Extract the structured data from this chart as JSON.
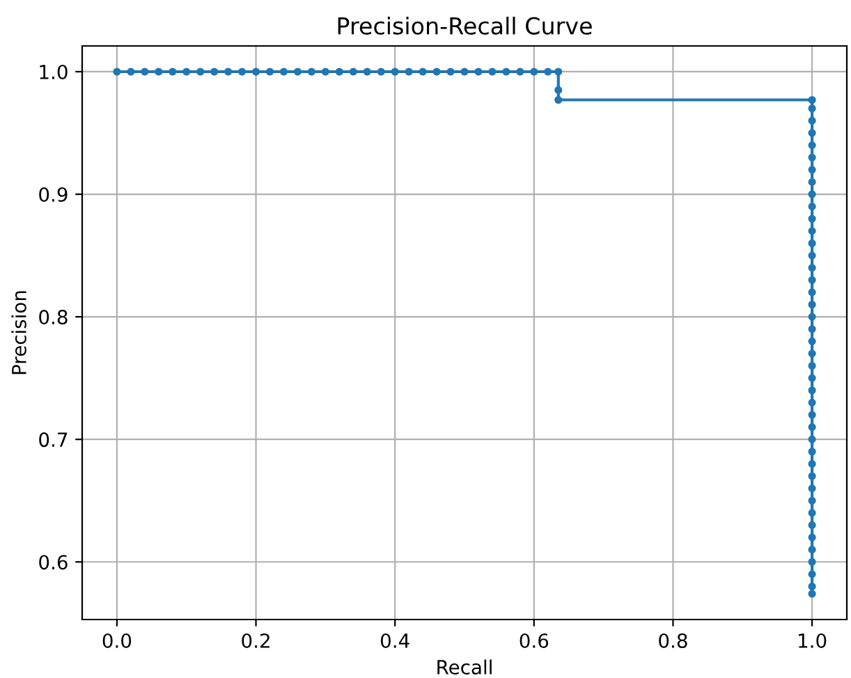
{
  "chart_data": {
    "type": "line",
    "title": "Precision-Recall Curve",
    "xlabel": "Recall",
    "ylabel": "Precision",
    "series": [
      {
        "color": "#1f77b4",
        "x": [
          0,
          0.02,
          0.04,
          0.06,
          0.08,
          0.1,
          0.12,
          0.14,
          0.16,
          0.18,
          0.2,
          0.22,
          0.24,
          0.26,
          0.28,
          0.3,
          0.32,
          0.34,
          0.36,
          0.38,
          0.4,
          0.42,
          0.44,
          0.46,
          0.48,
          0.5,
          0.52,
          0.54,
          0.56,
          0.58,
          0.6,
          0.62,
          0.635,
          0.635,
          0.635,
          1,
          1,
          1,
          1,
          1,
          1,
          1,
          1,
          1,
          1,
          1,
          1,
          1,
          1,
          1,
          1,
          1,
          1,
          1,
          1,
          1,
          1,
          1,
          1,
          1,
          1,
          1,
          1,
          1,
          1,
          1,
          1,
          1,
          1,
          1,
          1,
          1,
          1,
          1,
          1,
          1,
          1
        ],
        "values": [
          1,
          1,
          1,
          1,
          1,
          1,
          1,
          1,
          1,
          1,
          1,
          1,
          1,
          1,
          1,
          1,
          1,
          1,
          1,
          1,
          1,
          1,
          1,
          1,
          1,
          1,
          1,
          1,
          1,
          1,
          1,
          1,
          1,
          0.985,
          0.977,
          0.977,
          0.97,
          0.96,
          0.95,
          0.94,
          0.93,
          0.92,
          0.91,
          0.9,
          0.89,
          0.88,
          0.87,
          0.86,
          0.85,
          0.84,
          0.83,
          0.82,
          0.81,
          0.8,
          0.79,
          0.78,
          0.77,
          0.76,
          0.75,
          0.74,
          0.73,
          0.72,
          0.71,
          0.7,
          0.69,
          0.68,
          0.67,
          0.66,
          0.65,
          0.64,
          0.63,
          0.62,
          0.61,
          0.6,
          0.59,
          0.58,
          0.574
        ]
      }
    ],
    "xlim": [
      -0.05,
      1.05
    ],
    "ylim": [
      0.553,
      1.021
    ],
    "xticks": [
      {
        "value": 0,
        "label": "0.0"
      },
      {
        "value": 0.2,
        "label": "0.2"
      },
      {
        "value": 0.4,
        "label": "0.4"
      },
      {
        "value": 0.6,
        "label": "0.6"
      },
      {
        "value": 0.8,
        "label": "0.8"
      },
      {
        "value": 1,
        "label": "1.0"
      }
    ],
    "yticks": [
      {
        "value": 0.6,
        "label": "0.6"
      },
      {
        "value": 0.7,
        "label": "0.7"
      },
      {
        "value": 0.8,
        "label": "0.8"
      },
      {
        "value": 0.9,
        "label": "0.9"
      },
      {
        "value": 1,
        "label": "1.0"
      }
    ],
    "grid": true,
    "marker": "circle",
    "line_style": "solid"
  }
}
